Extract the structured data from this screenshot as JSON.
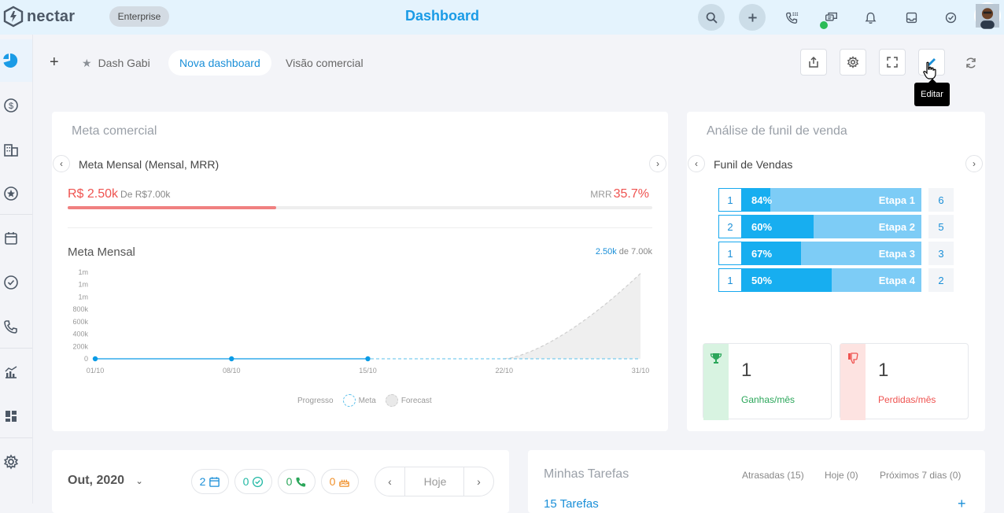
{
  "app": {
    "brand": "nectar",
    "plan": "Enterprise",
    "title": "Dashboard"
  },
  "header": {
    "icons": [
      "search-icon",
      "plus-icon",
      "phone-dialpad-icon",
      "chat-icon",
      "bell-icon",
      "inbox-icon",
      "check-circle-icon"
    ]
  },
  "sidebar": {
    "items": [
      "pie-chart-icon",
      "dollar-icon",
      "building-icon",
      "star-icon",
      "calendar-icon",
      "check-circle-icon",
      "phone-icon",
      "analytics-icon",
      "dashboard-grid-icon",
      "settings-icon"
    ]
  },
  "tabs": {
    "items": [
      {
        "label": "Dash Gabi",
        "starred": true
      },
      {
        "label": "Nova dashboard",
        "active": true
      },
      {
        "label": "Visão comercial"
      }
    ]
  },
  "toolbar": {
    "tooltip": "Editar"
  },
  "meta": {
    "title": "Meta comercial",
    "selector": "Meta Mensal (Mensal, MRR)",
    "value": "R$ 2.50k",
    "of": "De R$7.00k",
    "mrr_label": "MRR",
    "mrr_pct": "35.7%",
    "progress": 0.357,
    "chart_title": "Meta Mensal",
    "chart_summary_value": "2.50k",
    "chart_summary_rest": "de 7.00k"
  },
  "chart_data": {
    "type": "area",
    "title": "Meta Mensal",
    "categories": [
      "01/10",
      "08/10",
      "15/10",
      "22/10",
      "31/10"
    ],
    "y_tick_labels": [
      "0",
      "200k",
      "400k",
      "600k",
      "800k",
      "1m",
      "1m",
      "1m"
    ],
    "ylim": [
      0,
      1400000
    ],
    "series": [
      {
        "name": "Progresso",
        "x": [
          "01/10",
          "08/10",
          "15/10"
        ],
        "values": [
          0,
          0,
          0
        ]
      },
      {
        "name": "Meta",
        "x": [
          "01/10",
          "31/10"
        ],
        "values": [
          0,
          0
        ]
      },
      {
        "name": "Forecast",
        "x": [
          "22/10",
          "31/10"
        ],
        "values": [
          0,
          1380000
        ]
      }
    ],
    "legend": [
      "Progresso",
      "Meta",
      "Forecast"
    ],
    "legend_position": "bottom"
  },
  "funnel": {
    "title": "Análise de funil de venda",
    "selector": "Funil de Vendas",
    "stages": [
      {
        "num": "1",
        "pct": "84%",
        "fill": 0.16,
        "label": "Etapa 1",
        "count": "6"
      },
      {
        "num": "2",
        "pct": "60%",
        "fill": 0.4,
        "label": "Etapa 2",
        "count": "5"
      },
      {
        "num": "1",
        "pct": "67%",
        "fill": 0.33,
        "label": "Etapa 3",
        "count": "3"
      },
      {
        "num": "1",
        "pct": "50%",
        "fill": 0.5,
        "label": "Etapa 4",
        "count": "2"
      }
    ],
    "won": {
      "value": "1",
      "label": "Ganhas/mês",
      "color": "#2ba65a",
      "bg": "#d8f3e1"
    },
    "lost": {
      "value": "1",
      "label": "Perdidas/mês",
      "color": "#ef5350",
      "bg": "#fde3e1"
    }
  },
  "calendar": {
    "month": "Out, 2020",
    "events": "2",
    "tasks": "0",
    "calls": "0",
    "birthdays": "0",
    "today": "Hoje"
  },
  "my_tasks": {
    "title": "Minhas Tarefas",
    "late": "Atrasadas (15)",
    "today": "Hoje (0)",
    "next7": "Próximos 7 dias (0)",
    "count": "15 Tarefas"
  },
  "colors": {
    "accent": "#1a9be6",
    "red": "#ef5350",
    "green": "#2ba65a",
    "funnel_light": "#7dccf6",
    "funnel_dark": "#17aef0"
  }
}
